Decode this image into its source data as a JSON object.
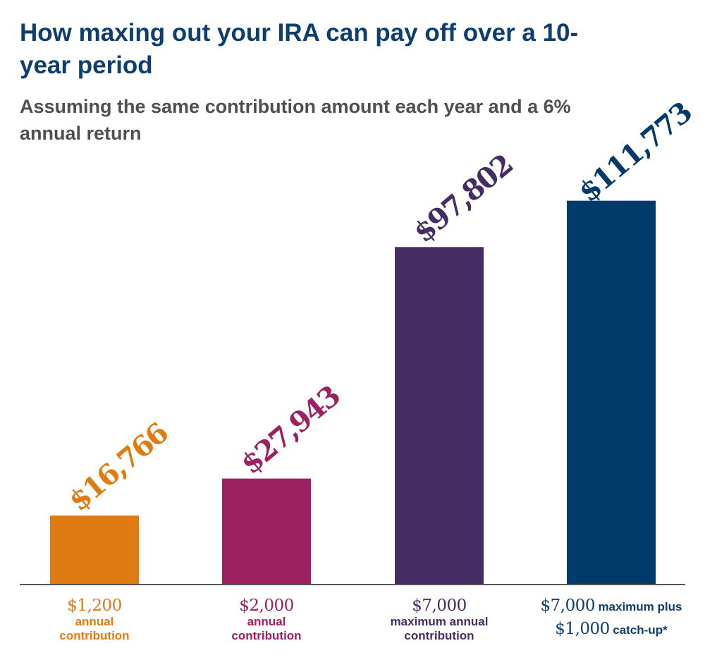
{
  "chart_data": {
    "type": "bar",
    "title": "How maxing out your IRA can pay off over a 10-year period",
    "subtitle": "Assuming the same contribution amount each year and a 6% annual return",
    "grid": false,
    "legend": "none",
    "categories": [
      {
        "amount": "$1,200",
        "text": "annual contribution"
      },
      {
        "amount": "$2,000",
        "text": "annual contribution"
      },
      {
        "amount": "$7,000",
        "text": "maximum annual contribution"
      },
      {
        "amount": "$7,000",
        "text": "maximum plus",
        "amount2": "$1,000",
        "text2": "catch-up*"
      }
    ],
    "values": [
      16766,
      27943,
      97802,
      111773
    ],
    "value_labels": [
      "$16,766",
      "$27,943",
      "$97,802",
      "$111,773"
    ],
    "colors": [
      "#e07b12",
      "#9b2160",
      "#452c63",
      "#003a6a"
    ]
  }
}
